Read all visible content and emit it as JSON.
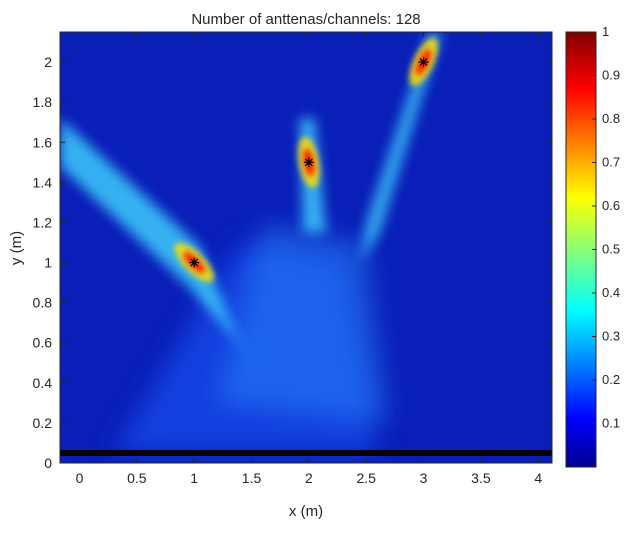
{
  "chart_data": {
    "type": "heatmap",
    "title": "Number of anttenas/channels: 128",
    "xlabel": "x (m)",
    "ylabel": "y (m)",
    "xlim": [
      -0.17,
      4.12
    ],
    "ylim": [
      0,
      2.15
    ],
    "x_ticks": [
      "0",
      "0.5",
      "1",
      "1.5",
      "2",
      "2.5",
      "3",
      "3.5",
      "4"
    ],
    "y_ticks": [
      "0",
      "0.2",
      "0.4",
      "0.6",
      "0.8",
      "1",
      "1.2",
      "1.4",
      "1.6",
      "1.8",
      "2"
    ],
    "colorbar": {
      "range": [
        0,
        1
      ],
      "ticks": [
        "0.1",
        "0.2",
        "0.3",
        "0.4",
        "0.5",
        "0.6",
        "0.7",
        "0.8",
        "0.9",
        "1"
      ],
      "colormap": "jet"
    },
    "markers": [
      {
        "x": 1,
        "y": 1,
        "symbol": "*"
      },
      {
        "x": 2,
        "y": 1.5,
        "symbol": "*"
      },
      {
        "x": 3,
        "y": 2,
        "symbol": "*"
      }
    ],
    "array_line": {
      "y": 0.05,
      "color": "#000000"
    },
    "hotspots": [
      {
        "x": 1,
        "y": 1,
        "value": 1
      },
      {
        "x": 2,
        "y": 1.5,
        "value": 1
      },
      {
        "x": 3,
        "y": 2,
        "value": 1
      }
    ],
    "background_level": 0.08,
    "grid": false
  },
  "colors": {
    "background": "#0a1fb8",
    "axis": "#262626"
  }
}
